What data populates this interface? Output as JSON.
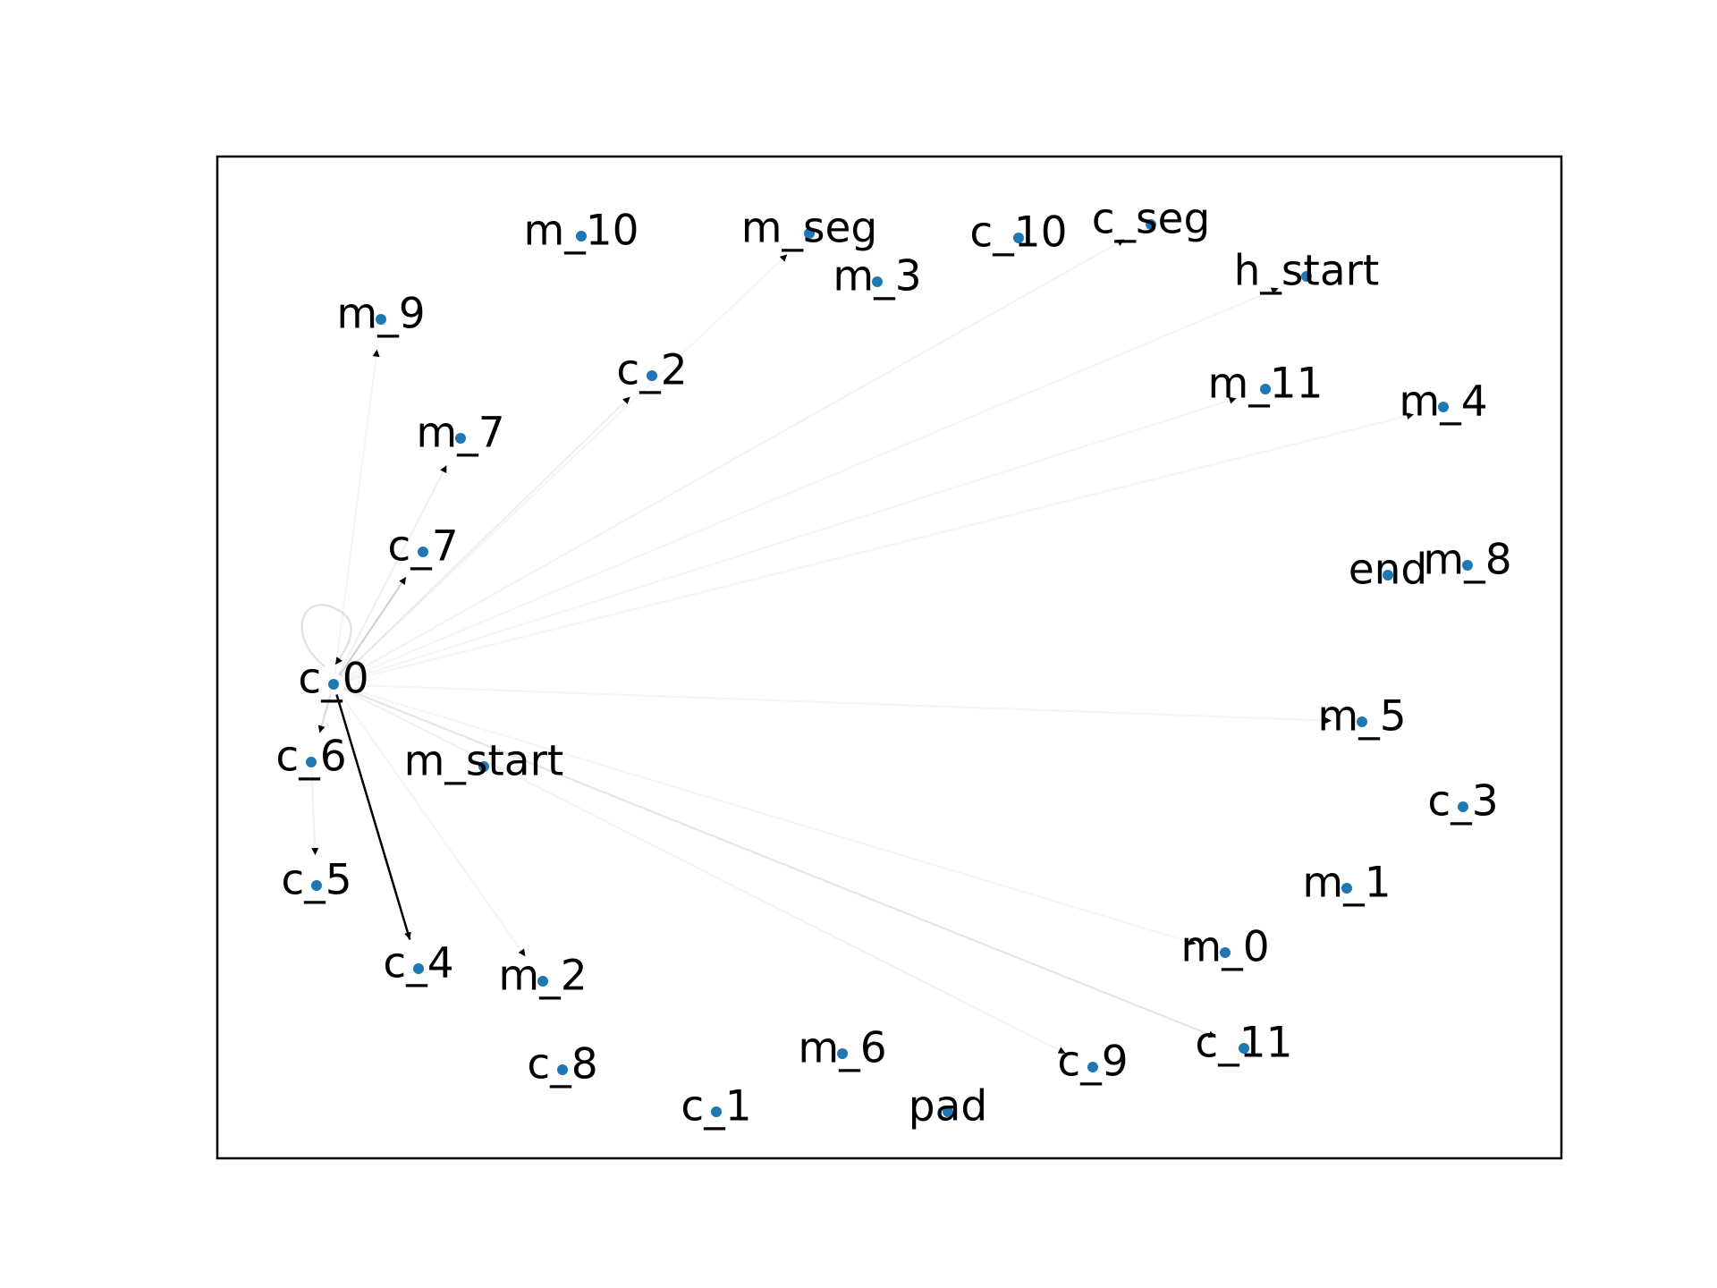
{
  "nodes": [
    {
      "id": "m_10",
      "label": "m_10"
    },
    {
      "id": "m_seg",
      "label": "m_seg"
    },
    {
      "id": "c_10",
      "label": "c_10"
    },
    {
      "id": "c_seg",
      "label": "c_seg"
    },
    {
      "id": "h_start",
      "label": "h_start"
    },
    {
      "id": "m_3",
      "label": "m_3"
    },
    {
      "id": "m_9",
      "label": "m_9"
    },
    {
      "id": "c_2",
      "label": "c_2"
    },
    {
      "id": "m_11",
      "label": "m_11"
    },
    {
      "id": "m_4",
      "label": "m_4"
    },
    {
      "id": "m_7",
      "label": "m_7"
    },
    {
      "id": "c_7",
      "label": "c_7"
    },
    {
      "id": "end",
      "label": "end"
    },
    {
      "id": "m_8",
      "label": "m_8"
    },
    {
      "id": "c_0",
      "label": "c_0"
    },
    {
      "id": "m_5",
      "label": "m_5"
    },
    {
      "id": "c_6",
      "label": "c_6"
    },
    {
      "id": "m_start",
      "label": "m_start"
    },
    {
      "id": "c_3",
      "label": "c_3"
    },
    {
      "id": "c_5",
      "label": "c_5"
    },
    {
      "id": "m_1",
      "label": "m_1"
    },
    {
      "id": "m_0",
      "label": "m_0"
    },
    {
      "id": "c_4",
      "label": "c_4"
    },
    {
      "id": "m_2",
      "label": "m_2"
    },
    {
      "id": "c_11",
      "label": "c_11"
    },
    {
      "id": "m_6",
      "label": "m_6"
    },
    {
      "id": "c_8",
      "label": "c_8"
    },
    {
      "id": "c_9",
      "label": "c_9"
    },
    {
      "id": "c_1",
      "label": "c_1"
    },
    {
      "id": "pad",
      "label": "pad"
    }
  ],
  "edges": [
    {
      "source": "c_0",
      "target": "c_4",
      "weight": 1.0
    },
    {
      "source": "c_0",
      "target": "c_7",
      "weight": 0.18
    },
    {
      "source": "c_0",
      "target": "c_6",
      "weight": 0.14
    },
    {
      "source": "c_0",
      "target": "c_0",
      "weight": 0.12
    },
    {
      "source": "c_0",
      "target": "c_11",
      "weight": 0.1
    },
    {
      "source": "c_0",
      "target": "m_7",
      "weight": 0.06
    },
    {
      "source": "c_0",
      "target": "c_2",
      "weight": 0.06
    },
    {
      "source": "c_0",
      "target": "c_seg",
      "weight": 0.05
    },
    {
      "source": "c_0",
      "target": "c_9",
      "weight": 0.05
    },
    {
      "source": "c_0",
      "target": "h_start",
      "weight": 0.04
    },
    {
      "source": "c_0",
      "target": "m_11",
      "weight": 0.03
    },
    {
      "source": "c_0",
      "target": "m_4",
      "weight": 0.03
    },
    {
      "source": "c_0",
      "target": "m_5",
      "weight": 0.03
    },
    {
      "source": "c_0",
      "target": "m_0",
      "weight": 0.03
    },
    {
      "source": "c_0",
      "target": "m_2",
      "weight": 0.03
    },
    {
      "source": "c_0",
      "target": "m_9",
      "weight": 0.03
    },
    {
      "source": "c_0",
      "target": "m_seg",
      "weight": 0.02
    },
    {
      "source": "c_6",
      "target": "c_5",
      "weight": 0.06
    }
  ],
  "colors": {
    "node": "#1f77b4",
    "edge": "#000000",
    "label": "#000000"
  }
}
